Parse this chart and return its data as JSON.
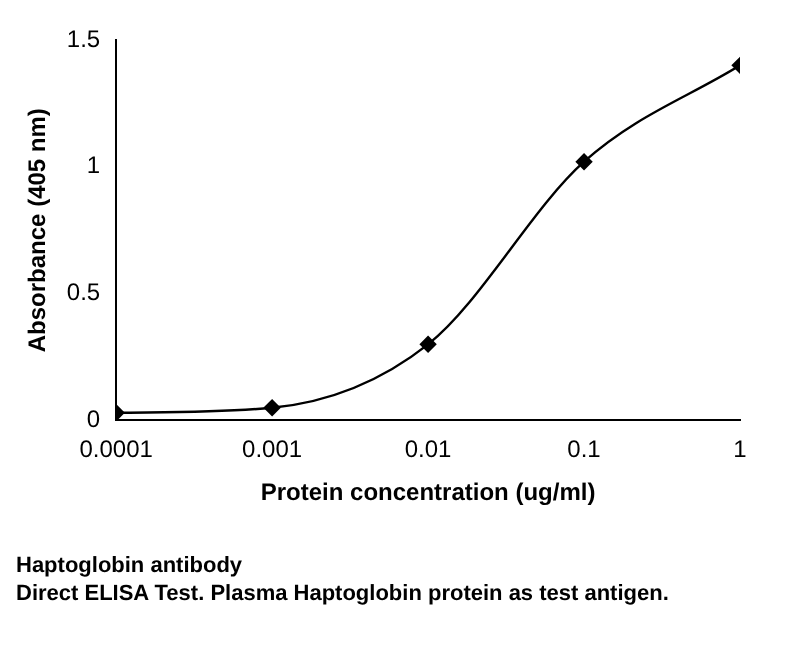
{
  "chart_data": {
    "type": "line",
    "xlabel": "Protein concentration (ug/ml)",
    "ylabel": "Absorbance (405 nm)",
    "title": "Haptoglobin antibody",
    "annotations": [
      "Direct ELISA Test. Plasma Haptoglobin protein as test antigen."
    ],
    "x": [
      0.0001,
      0.001,
      0.01,
      0.1,
      1
    ],
    "series": [
      {
        "color": "#000000",
        "values": [
          0.03,
          0.05,
          0.3,
          1.02,
          1.4
        ]
      }
    ],
    "log": "x",
    "xlim": [
      0.0001,
      1
    ],
    "xticks": [
      0.0001,
      0.001,
      0.01,
      0.1,
      1
    ],
    "ylim": [
      0,
      1.5
    ],
    "yticks": [
      0,
      0.5,
      1,
      1.5
    ],
    "grid": false,
    "legend": false,
    "marker": "diamond",
    "line_style": "solid"
  }
}
